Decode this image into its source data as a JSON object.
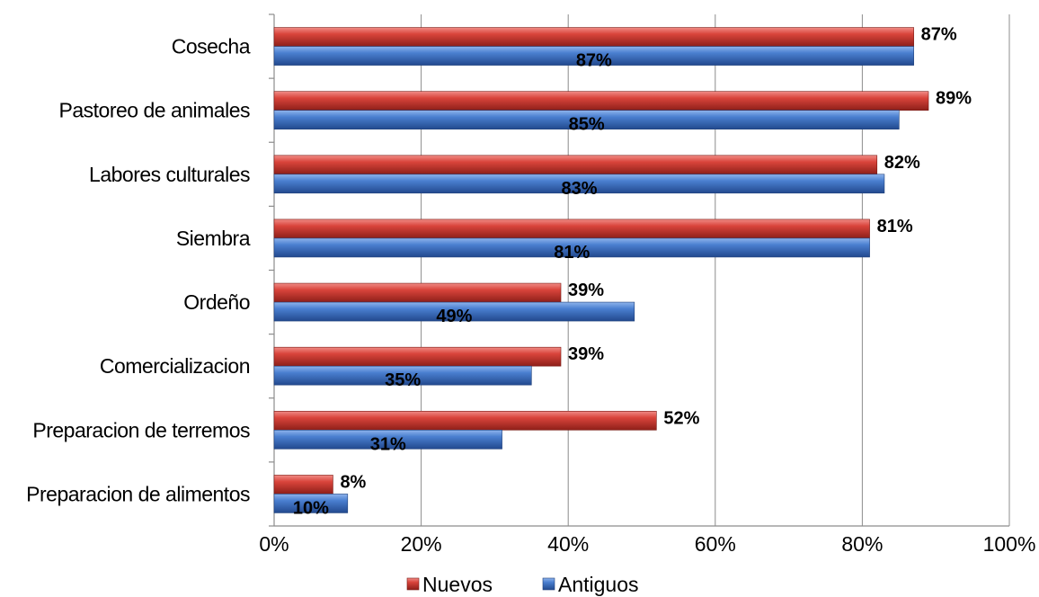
{
  "chart_data": {
    "type": "bar",
    "orientation": "horizontal",
    "categories": [
      "Cosecha",
      "Pastoreo de animales",
      "Labores culturales",
      "Siembra",
      "Ordeño",
      "Comercializacion",
      "Preparacion de terremos",
      "Preparacion de alimentos"
    ],
    "series": [
      {
        "name": "Nuevos",
        "color": "#c0392f",
        "values": [
          87,
          89,
          82,
          81,
          39,
          39,
          52,
          8
        ],
        "labels": [
          "87%",
          "89%",
          "82%",
          "81%",
          "39%",
          "39%",
          "52%",
          "8%"
        ]
      },
      {
        "name": "Antiguos",
        "color": "#3a6fc4",
        "values": [
          87,
          85,
          83,
          81,
          49,
          35,
          31,
          10
        ],
        "labels": [
          "87%",
          "85%",
          "83%",
          "81%",
          "49%",
          "35%",
          "31%",
          "10%"
        ]
      }
    ],
    "xlim": [
      0,
      100
    ],
    "xticks": [
      "0%",
      "20%",
      "40%",
      "60%",
      "80%",
      "100%"
    ],
    "grid": true,
    "legend_position": "bottom"
  }
}
